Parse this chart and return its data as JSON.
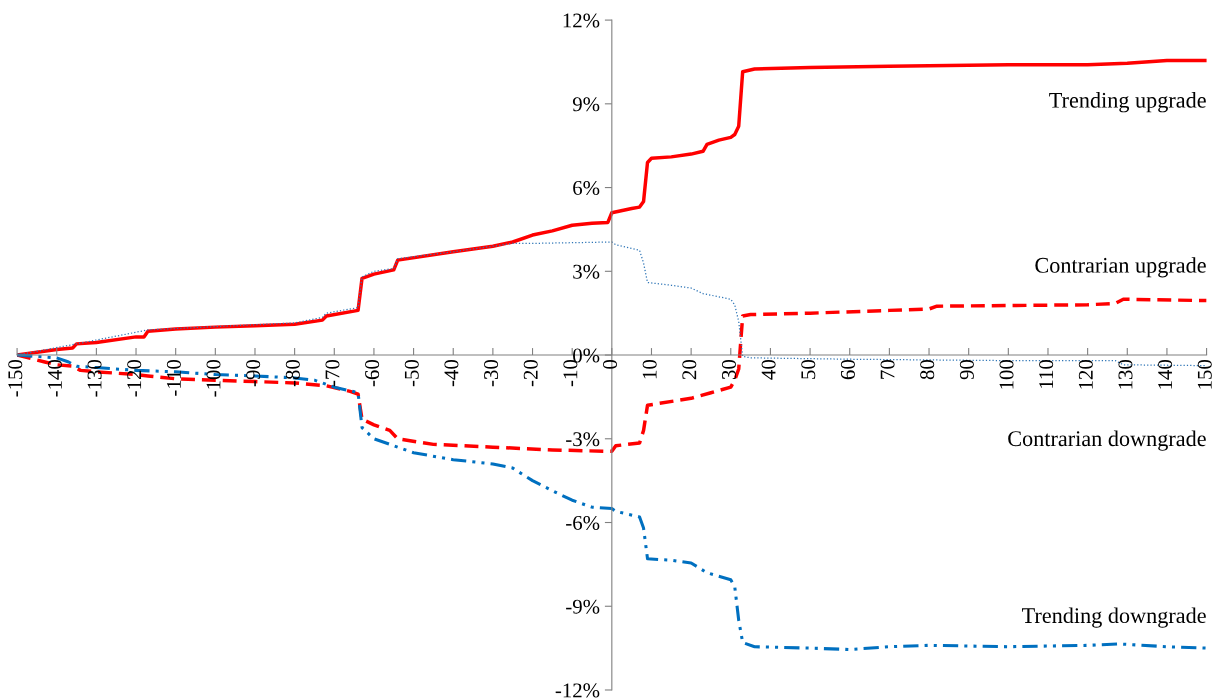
{
  "chart_data": {
    "type": "line",
    "xlim": [
      -150,
      150
    ],
    "xticks": [
      -150,
      -140,
      -130,
      -120,
      -110,
      -100,
      -90,
      -80,
      -70,
      -60,
      -50,
      -40,
      -30,
      -20,
      -10,
      0,
      10,
      20,
      30,
      40,
      50,
      60,
      70,
      80,
      90,
      100,
      110,
      120,
      130,
      140,
      150
    ],
    "ylim": [
      -12,
      12
    ],
    "yticks": [
      {
        "value": -12,
        "label": "-12%"
      },
      {
        "value": -9,
        "label": "-9%"
      },
      {
        "value": -6,
        "label": "-6%"
      },
      {
        "value": -3,
        "label": "-3%"
      },
      {
        "value": 0,
        "label": "0%"
      },
      {
        "value": 3,
        "label": "3%"
      },
      {
        "value": 6,
        "label": "6%"
      },
      {
        "value": 9,
        "label": "9%"
      },
      {
        "value": 12,
        "label": "12%"
      }
    ],
    "grid": false,
    "legend": false,
    "series": [
      {
        "name": "Trending upgrade",
        "color": "#ff0000",
        "line_style": "solid",
        "x": [
          -150,
          -140,
          -136,
          -135,
          -130,
          -120,
          -118,
          -117,
          -110,
          -100,
          -90,
          -80,
          -73,
          -72,
          -64,
          -63,
          -60,
          -55,
          -54,
          -40,
          -30,
          -25,
          -20,
          -15,
          -10,
          -5,
          -1,
          0,
          5,
          7,
          8,
          9,
          10,
          15,
          20,
          23,
          24,
          27,
          30,
          31,
          32,
          33,
          36,
          50,
          70,
          100,
          120,
          130,
          140,
          150
        ],
        "values": [
          0,
          0.2,
          0.25,
          0.4,
          0.45,
          0.65,
          0.65,
          0.85,
          0.93,
          1.0,
          1.05,
          1.1,
          1.25,
          1.4,
          1.6,
          2.75,
          2.9,
          3.05,
          3.4,
          3.7,
          3.9,
          4.05,
          4.3,
          4.45,
          4.65,
          4.72,
          4.75,
          5.1,
          5.25,
          5.3,
          5.5,
          6.9,
          7.05,
          7.1,
          7.2,
          7.3,
          7.55,
          7.7,
          7.8,
          7.9,
          8.2,
          10.15,
          10.25,
          10.3,
          10.35,
          10.4,
          10.4,
          10.45,
          10.55,
          10.55
        ]
      },
      {
        "name": "Contrarian upgrade",
        "color": "#ff0000",
        "line_style": "dashed",
        "x": [
          -150,
          -143,
          -140,
          -136,
          -134,
          -130,
          -120,
          -117,
          -110,
          -100,
          -90,
          -80,
          -72,
          -66,
          -64,
          -63,
          -60,
          -56,
          -54,
          -45,
          -30,
          -15,
          -1,
          0,
          1,
          7,
          8,
          9,
          20,
          25,
          30,
          31,
          32,
          33,
          35,
          50,
          70,
          80,
          82,
          120,
          127,
          129,
          150
        ],
        "values": [
          0,
          -0.25,
          -0.35,
          -0.4,
          -0.55,
          -0.6,
          -0.7,
          -0.75,
          -0.85,
          -0.9,
          -0.95,
          -1.0,
          -1.1,
          -1.3,
          -1.4,
          -2.3,
          -2.5,
          -2.7,
          -3.0,
          -3.2,
          -3.3,
          -3.4,
          -3.45,
          -3.45,
          -3.25,
          -3.15,
          -2.7,
          -1.8,
          -1.55,
          -1.35,
          -1.15,
          -0.9,
          -0.5,
          1.4,
          1.45,
          1.5,
          1.6,
          1.65,
          1.75,
          1.8,
          1.85,
          2.0,
          1.95
        ]
      },
      {
        "name": "Contrarian downgrade",
        "color": "#2e75b6",
        "line_style": "dotted",
        "x": [
          -150,
          -135,
          -117,
          -100,
          -80,
          -73,
          -72,
          -64,
          -63,
          -60,
          -55,
          -54,
          -40,
          -30,
          -25,
          -20,
          0,
          1,
          7,
          8,
          9,
          15,
          20,
          23,
          30,
          31,
          32,
          33,
          35,
          60,
          100,
          127,
          129,
          150
        ],
        "values": [
          0,
          0.4,
          0.9,
          1.02,
          1.15,
          1.35,
          1.5,
          1.7,
          2.8,
          3.0,
          3.1,
          3.45,
          3.7,
          3.9,
          4.0,
          4.0,
          4.05,
          3.95,
          3.75,
          3.3,
          2.6,
          2.5,
          2.4,
          2.2,
          2.0,
          1.8,
          1.2,
          -0.05,
          -0.1,
          -0.15,
          -0.2,
          -0.2,
          -0.35,
          -0.38
        ]
      },
      {
        "name": "Trending downgrade",
        "color": "#0070c0",
        "line_style": "dashdot",
        "x": [
          -150,
          -140,
          -137,
          -135,
          -130,
          -120,
          -110,
          -100,
          -90,
          -80,
          -75,
          -70,
          -64,
          -63,
          -60,
          -56,
          -50,
          -40,
          -30,
          -25,
          -20,
          -13,
          -10,
          -5,
          0,
          1,
          7,
          8,
          9,
          15,
          20,
          24,
          30,
          31,
          32,
          33,
          36,
          50,
          60,
          70,
          80,
          100,
          120,
          128,
          140,
          150
        ],
        "values": [
          0,
          -0.1,
          -0.25,
          -0.4,
          -0.45,
          -0.55,
          -0.6,
          -0.7,
          -0.75,
          -0.82,
          -0.9,
          -1.15,
          -1.35,
          -2.6,
          -3.0,
          -3.2,
          -3.5,
          -3.75,
          -3.9,
          -4.05,
          -4.5,
          -5.0,
          -5.2,
          -5.45,
          -5.5,
          -5.6,
          -5.8,
          -6.2,
          -7.3,
          -7.35,
          -7.45,
          -7.8,
          -8.05,
          -8.3,
          -9.5,
          -10.3,
          -10.45,
          -10.5,
          -10.55,
          -10.45,
          -10.4,
          -10.45,
          -10.4,
          -10.35,
          -10.45,
          -10.5
        ]
      }
    ]
  }
}
